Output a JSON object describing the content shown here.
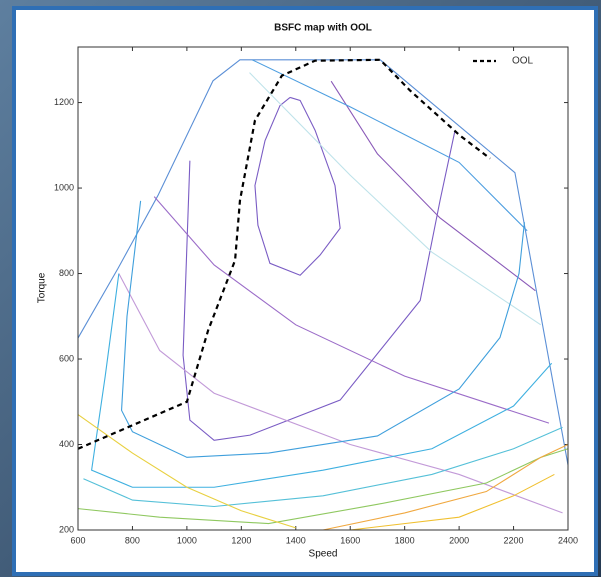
{
  "chart_data": {
    "type": "line",
    "title": "BSFC map with OOL",
    "xlabel": "Speed",
    "ylabel": "Torque",
    "xlim": [
      600,
      2400
    ],
    "ylim": [
      200,
      1330
    ],
    "xticks": [
      600,
      800,
      1000,
      1200,
      1400,
      1600,
      1800,
      2000,
      2200,
      2400
    ],
    "yticks": [
      200,
      400,
      600,
      800,
      1000,
      1200
    ],
    "legend": "upper right",
    "series": [
      {
        "name": "OOL",
        "color": "#000000",
        "dashed": true,
        "x": [
          600,
          1000,
          1078,
          1177,
          1195,
          1250,
          1349,
          1471,
          1710,
          1820,
          2003,
          2114
        ],
        "y": [
          390,
          500,
          667,
          831,
          971,
          1158,
          1263,
          1298,
          1300,
          1228,
          1123,
          1069
        ]
      }
    ],
    "contours": [
      {
        "color": "#5b8fd6",
        "x": [
          600,
          747,
          894,
          1096,
          1195,
          1489,
          1710,
          2205,
          2400
        ],
        "y": [
          649,
          812,
          983,
          1251,
          1300,
          1300,
          1300,
          1036,
          352
        ]
      },
      {
        "color": "#7a5cc4",
        "x": [
          1379,
          1416,
          1471,
          1544,
          1563,
          1489,
          1416,
          1305,
          1261,
          1250,
          1287,
          1342,
          1379
        ],
        "y": [
          1212,
          1205,
          1135,
          1006,
          906,
          843,
          796,
          824,
          913,
          1006,
          1111,
          1193,
          1212
        ]
      },
      {
        "color": "#7a5cc4",
        "x": [
          1011,
          986,
          1011,
          1100,
          1232,
          1563,
          1857,
          1930,
          1985
        ],
        "y": [
          1064,
          609,
          457,
          410,
          422,
          504,
          737,
          971,
          1135
        ]
      },
      {
        "color": "#8a5ab8",
        "x": [
          1530,
          1700,
          1930,
          2280
        ],
        "y": [
          1250,
          1080,
          930,
          760
        ]
      },
      {
        "color": "#9b6cc8",
        "x": [
          880,
          1100,
          1400,
          1800,
          2330
        ],
        "y": [
          980,
          820,
          680,
          560,
          450
        ]
      },
      {
        "color": "#c29ad8",
        "x": [
          750,
          900,
          1100,
          1600,
          2000,
          2380
        ],
        "y": [
          800,
          620,
          520,
          400,
          330,
          240
        ]
      },
      {
        "color": "#4d9ee0",
        "x": [
          1240,
          1600,
          2000,
          2250
        ],
        "y": [
          1300,
          1190,
          1060,
          900
        ]
      },
      {
        "color": "#bfe3ea",
        "x": [
          1230,
          1600,
          1900,
          2300
        ],
        "y": [
          1270,
          1030,
          850,
          680
        ]
      },
      {
        "color": "#3f9fdc",
        "x": [
          830,
          780,
          760,
          800,
          1000,
          1300,
          1700,
          2000,
          2150,
          2220,
          2240
        ],
        "y": [
          970,
          700,
          480,
          430,
          370,
          380,
          420,
          530,
          650,
          800,
          920
        ]
      },
      {
        "color": "#3fb0e0",
        "x": [
          750,
          700,
          650,
          800,
          1100,
          1500,
          1900,
          2200,
          2340
        ],
        "y": [
          800,
          560,
          340,
          300,
          300,
          340,
          390,
          490,
          590
        ]
      },
      {
        "color": "#55c0d8",
        "x": [
          620,
          800,
          1100,
          1500,
          1900,
          2200,
          2380
        ],
        "y": [
          320,
          270,
          255,
          280,
          330,
          390,
          440
        ]
      },
      {
        "color": "#8fc860",
        "x": [
          600,
          900,
          1300,
          1700,
          2100,
          2300,
          2400
        ],
        "y": [
          250,
          230,
          215,
          260,
          310,
          370,
          390
        ]
      },
      {
        "color": "#e8d040",
        "x": [
          600,
          800,
          1000,
          1200,
          1400
        ],
        "y": [
          470,
          380,
          300,
          245,
          205
        ]
      },
      {
        "color": "#f0a840",
        "x": [
          1500,
          1800,
          2100,
          2300,
          2400
        ],
        "y": [
          200,
          240,
          290,
          370,
          400
        ]
      },
      {
        "color": "#f0c030",
        "x": [
          1600,
          2000,
          2200,
          2350
        ],
        "y": [
          200,
          230,
          280,
          330
        ]
      }
    ]
  }
}
